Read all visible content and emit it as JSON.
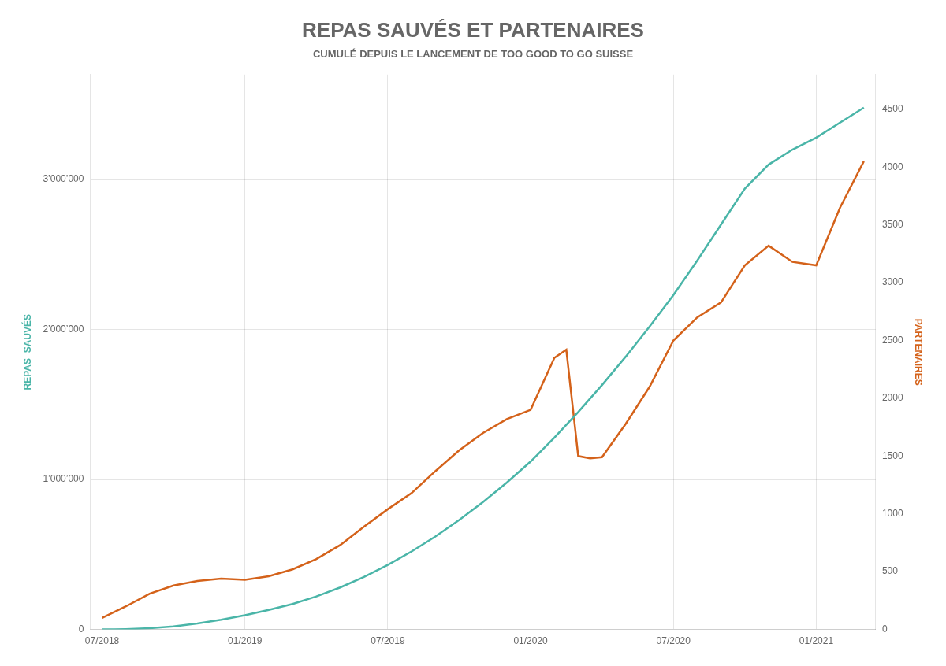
{
  "chart_data": {
    "type": "line",
    "title": "REPAS SAUVÉS ET PARTENAIRES",
    "subtitle": "CUMULÉ DEPUIS LE LANCEMENT DE TOO GOOD TO GO SUISSE",
    "ylabel": "REPAS  SAUVÉS",
    "y2label": "PARTENAIRES",
    "grid": true,
    "xlim": [
      -0.5,
      32.5
    ],
    "xticks": [
      {
        "value": 0,
        "label": "07/2018"
      },
      {
        "value": 6,
        "label": "01/2019"
      },
      {
        "value": 12,
        "label": "07/2019"
      },
      {
        "value": 18,
        "label": "01/2020"
      },
      {
        "value": 24,
        "label": "07/2020"
      },
      {
        "value": 30,
        "label": "01/2021"
      }
    ],
    "ylim": [
      0,
      3700000
    ],
    "yticks": [
      0,
      {
        "value": 1000000,
        "label": "1’000’000"
      },
      {
        "value": 2000000,
        "label": "2’000’000"
      },
      {
        "value": 3000000,
        "label": "3’000’000"
      }
    ],
    "y2lim": [
      0,
      4800
    ],
    "y2ticks": [
      0,
      500,
      1000,
      1500,
      2000,
      2500,
      3000,
      3500,
      4000,
      4500
    ],
    "series": [
      {
        "color": "#4ab5a8",
        "x": [
          0,
          0.5,
          1,
          2,
          3,
          4,
          5,
          6,
          7,
          8,
          9,
          10,
          11,
          12,
          13,
          14,
          15,
          16,
          17,
          18,
          19,
          20,
          21,
          22,
          23,
          24,
          25,
          26,
          27,
          28,
          29,
          30,
          31,
          32
        ],
        "values": [
          0,
          500,
          2000,
          8000,
          20000,
          40000,
          65000,
          95000,
          130000,
          170000,
          220000,
          280000,
          350000,
          430000,
          520000,
          620000,
          730000,
          850000,
          980000,
          1120000,
          1280000,
          1450000,
          1630000,
          1820000,
          2020000,
          2230000,
          2460000,
          2700000,
          2940000,
          3100000,
          3200000,
          3280000,
          3380000,
          3480000
        ]
      },
      {
        "color": "#d4621a",
        "axis": "y2",
        "x": [
          0,
          1,
          2,
          3,
          4,
          5,
          6,
          7,
          8,
          9,
          10,
          11,
          12,
          13,
          14,
          15,
          16,
          17,
          18,
          19,
          19.5,
          20,
          20.5,
          21,
          22,
          23,
          24,
          25,
          26,
          27,
          28,
          29,
          30,
          31,
          32
        ],
        "values": [
          100,
          200,
          310,
          380,
          420,
          440,
          430,
          460,
          520,
          610,
          730,
          890,
          1040,
          1180,
          1370,
          1550,
          1700,
          1820,
          1900,
          2350,
          2420,
          1500,
          1480,
          1490,
          1780,
          2100,
          2500,
          2700,
          2830,
          3150,
          3320,
          3180,
          3150,
          3650,
          4050
        ]
      }
    ]
  }
}
